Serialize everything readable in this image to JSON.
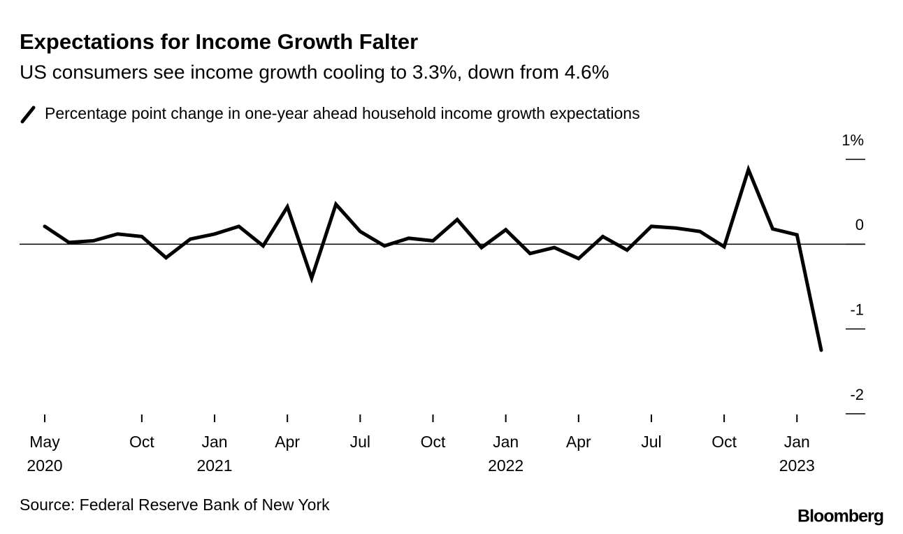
{
  "chart_data": {
    "type": "line",
    "title": "Expectations for Income Growth Falter",
    "subtitle": "US consumers see income growth cooling to 3.3%, down from 4.6%",
    "source": "Source: Federal Reserve Bank of New York",
    "brand": "Bloomberg",
    "categories": [
      "May 2020",
      null,
      null,
      null,
      "Oct",
      null,
      null,
      "Jan 2021",
      null,
      null,
      "Apr",
      null,
      null,
      "Jul",
      null,
      null,
      "Oct",
      null,
      null,
      "Jan 2022",
      null,
      null,
      "Apr",
      null,
      null,
      "Jul",
      null,
      null,
      "Oct",
      null,
      null,
      "Jan 2023",
      null
    ],
    "series": [
      {
        "name": "Percentage point change in one-year ahead household income growth expectations",
        "color": "#000000",
        "values": [
          0.21,
          0.02,
          0.04,
          0.12,
          0.09,
          -0.16,
          0.06,
          0.12,
          0.21,
          -0.02,
          0.44,
          -0.4,
          0.47,
          0.15,
          -0.02,
          0.07,
          0.04,
          0.29,
          -0.04,
          0.17,
          -0.11,
          -0.04,
          -0.17,
          0.09,
          -0.07,
          0.21,
          0.19,
          0.15,
          -0.03,
          0.88,
          0.18,
          0.11,
          -1.25
        ]
      }
    ],
    "ylim": [
      -2,
      1
    ],
    "yticks": [
      -2,
      -1,
      0,
      {
        "value": 1,
        "label": "1%"
      }
    ]
  }
}
